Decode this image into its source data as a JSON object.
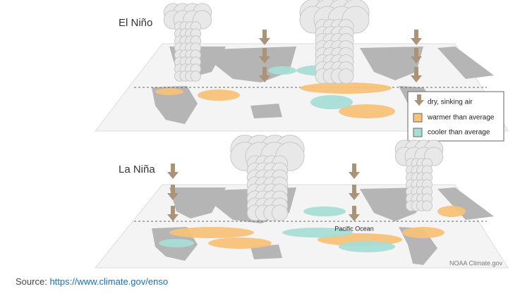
{
  "panels": [
    {
      "title": "El Niño"
    },
    {
      "title": "La Niña",
      "label": "Pacific Ocean",
      "credit": "NOAA Climate.gov"
    }
  ],
  "legend": {
    "items": [
      "dry, sinking air",
      "warmer than average",
      "cooler than average"
    ]
  },
  "source": {
    "prefix": "Source:",
    "link": "https://www.climate.gov/enso"
  }
}
